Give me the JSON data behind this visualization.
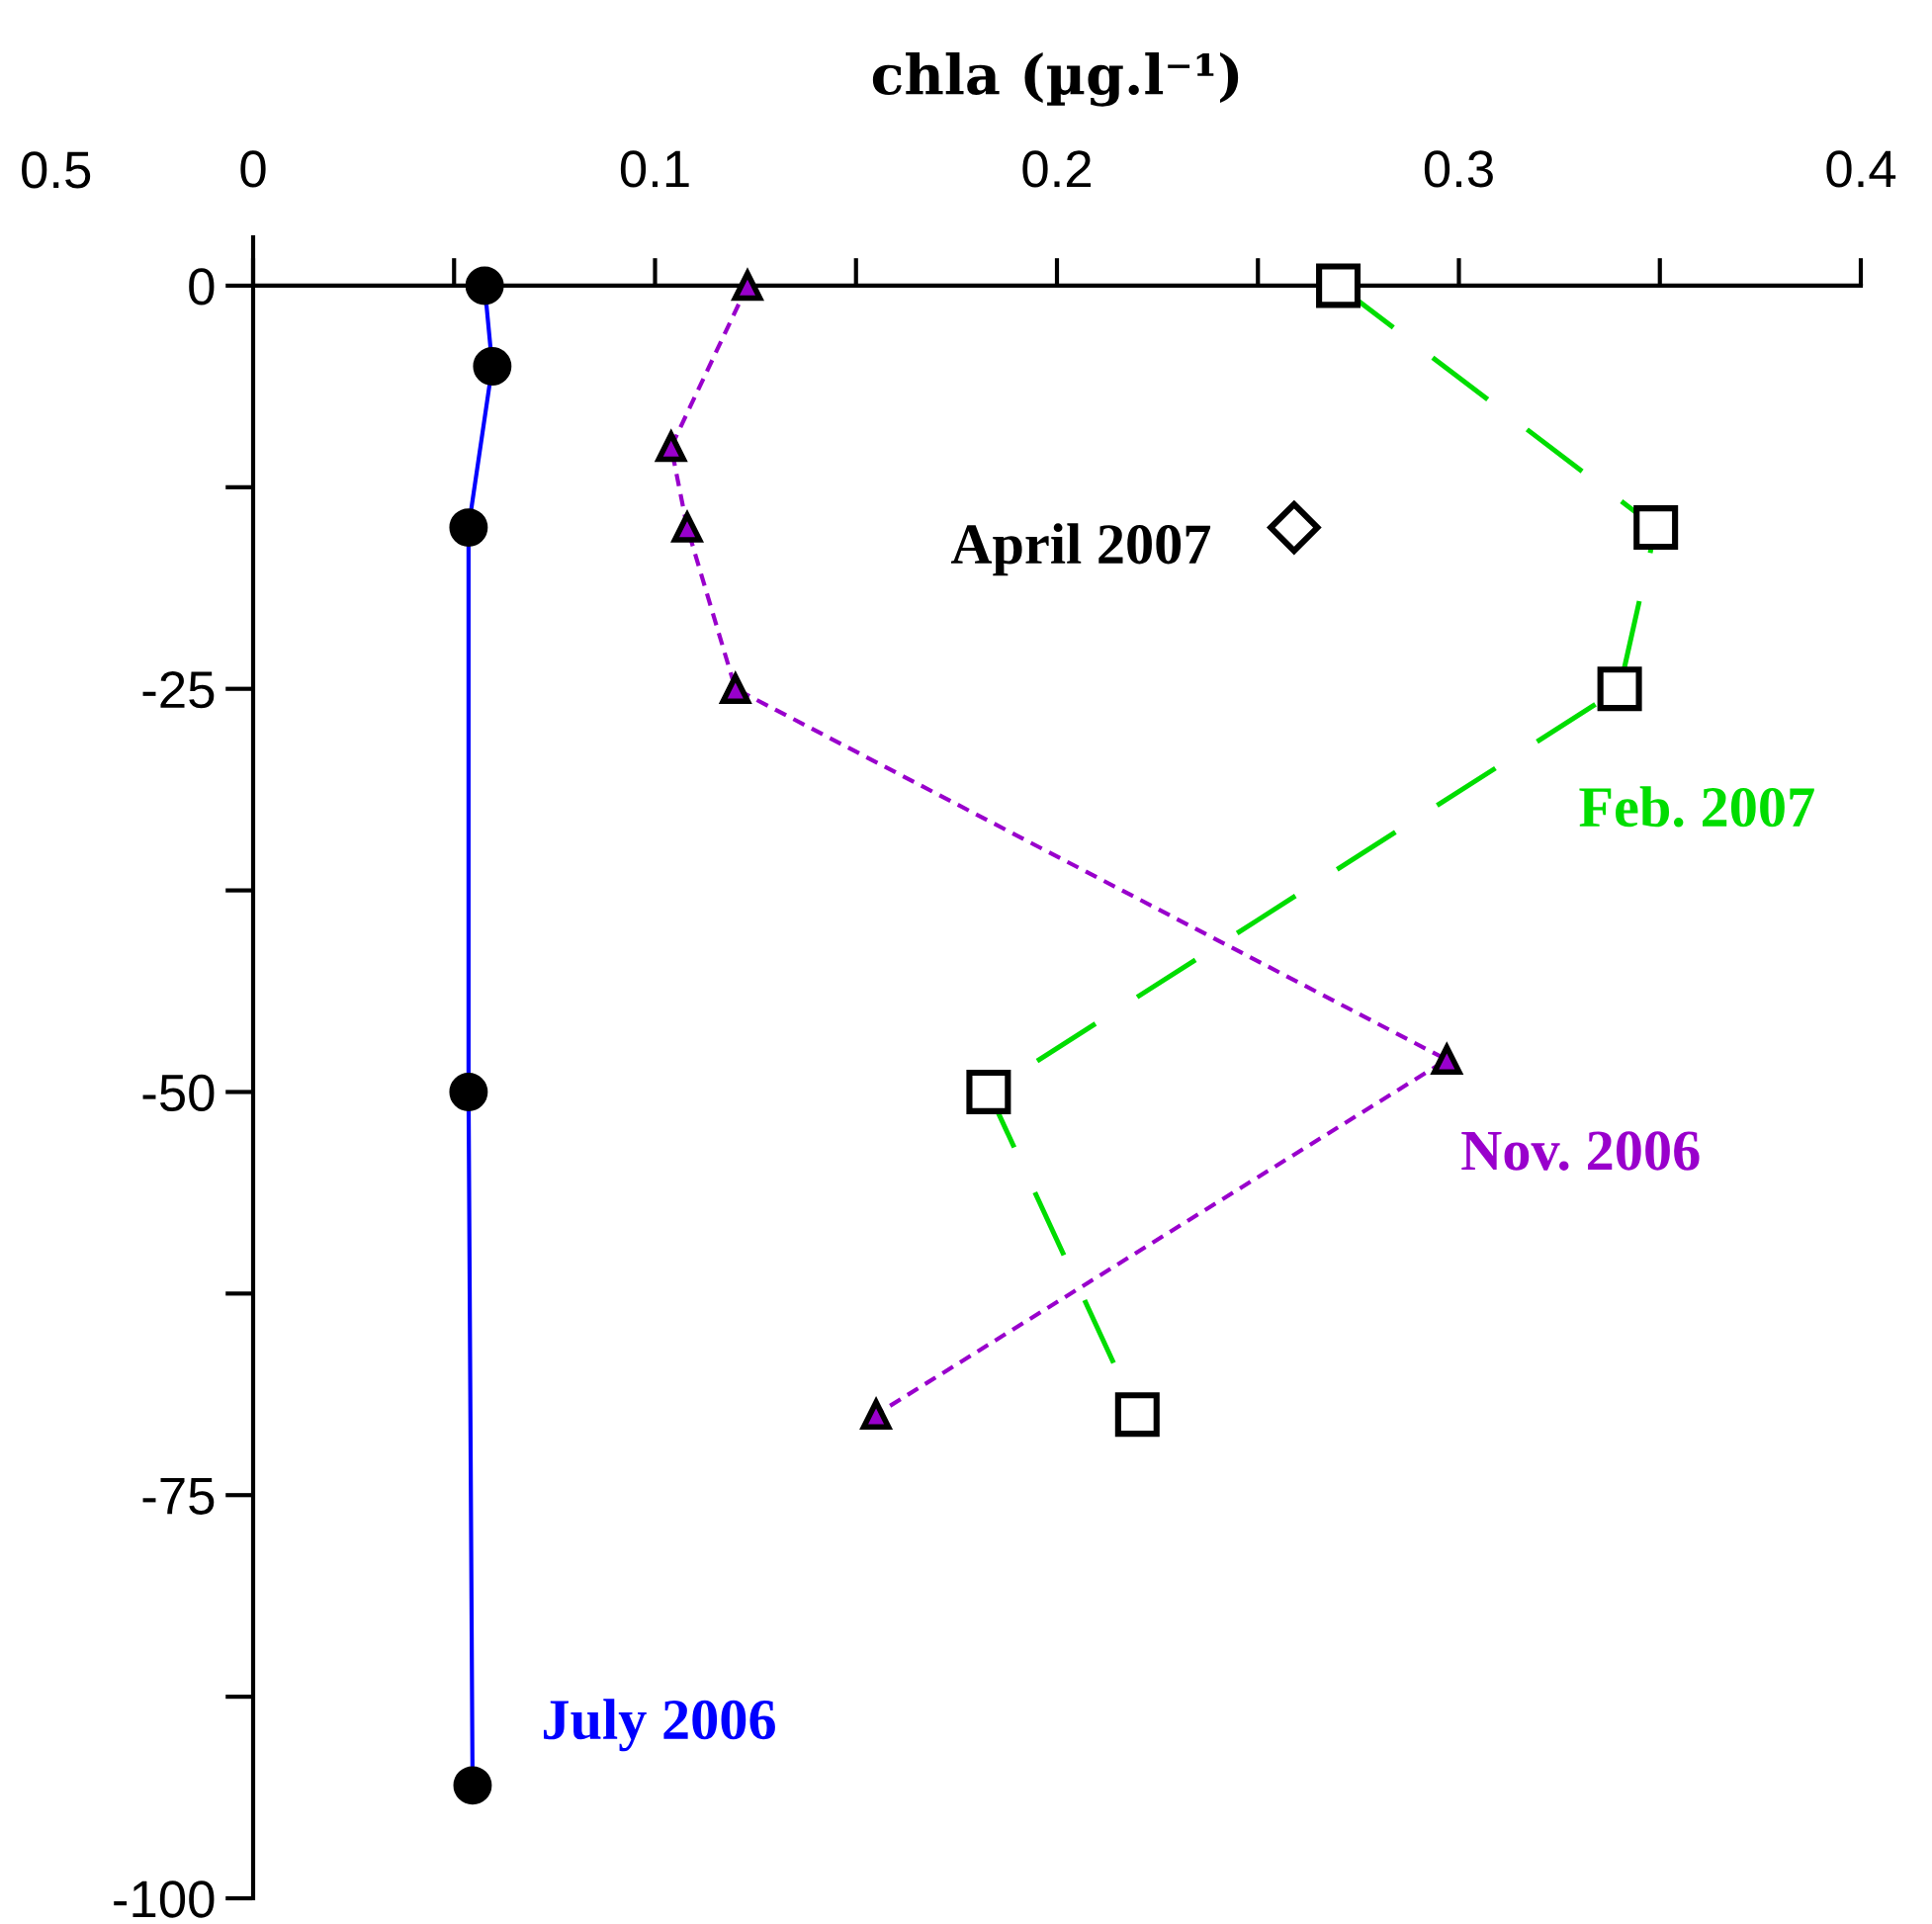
{
  "chart_data": {
    "type": "line",
    "xlabel": "chla (µg.l⁻¹)",
    "xlim": [
      0,
      0.4
    ],
    "ylim": [
      -100,
      3
    ],
    "xticks": [
      0,
      {
        "value": 0.05,
        "label": null
      },
      0.1,
      {
        "value": 0.15,
        "label": null
      },
      0.2,
      {
        "value": 0.25,
        "label": null
      },
      0.3,
      {
        "value": 0.35,
        "label": null
      },
      0.4
    ],
    "yticks": [
      0,
      {
        "value": -12.5,
        "label": null
      },
      -25,
      {
        "value": -37.5,
        "label": null
      },
      -50,
      {
        "value": -62.5,
        "label": null
      },
      -75,
      {
        "value": -87.5,
        "label": null
      },
      -100
    ],
    "grid": false,
    "annotations": [
      "0.5"
    ],
    "series": [
      {
        "name": "July 2006",
        "color": "#0000ff",
        "marker": "circle",
        "line_style": "solid",
        "x": [
          0.0576,
          0.0595,
          0.0536,
          0.0536,
          0.0546
        ],
        "values": [
          0,
          -5,
          -15,
          -50,
          -93
        ]
      },
      {
        "name": "Nov. 2006",
        "color": "#9900cc",
        "marker": "triangle",
        "line_style": "dashed",
        "x": [
          0.123,
          0.104,
          0.108,
          0.12,
          0.297,
          0.155
        ],
        "values": [
          0,
          -10,
          -15,
          -25,
          -48,
          -70
        ]
      },
      {
        "name": "Feb. 2007",
        "color": "#00dd00",
        "marker": "square",
        "line_style": "dashed",
        "x": [
          0.27,
          0.349,
          0.34,
          0.183,
          0.22
        ],
        "values": [
          0,
          -15,
          -25,
          -50,
          -70
        ]
      },
      {
        "name": "April 2007",
        "type": "scatter",
        "color": "#000000",
        "marker": "diamond",
        "x": [
          0.259
        ],
        "values": [
          -15
        ]
      }
    ]
  }
}
